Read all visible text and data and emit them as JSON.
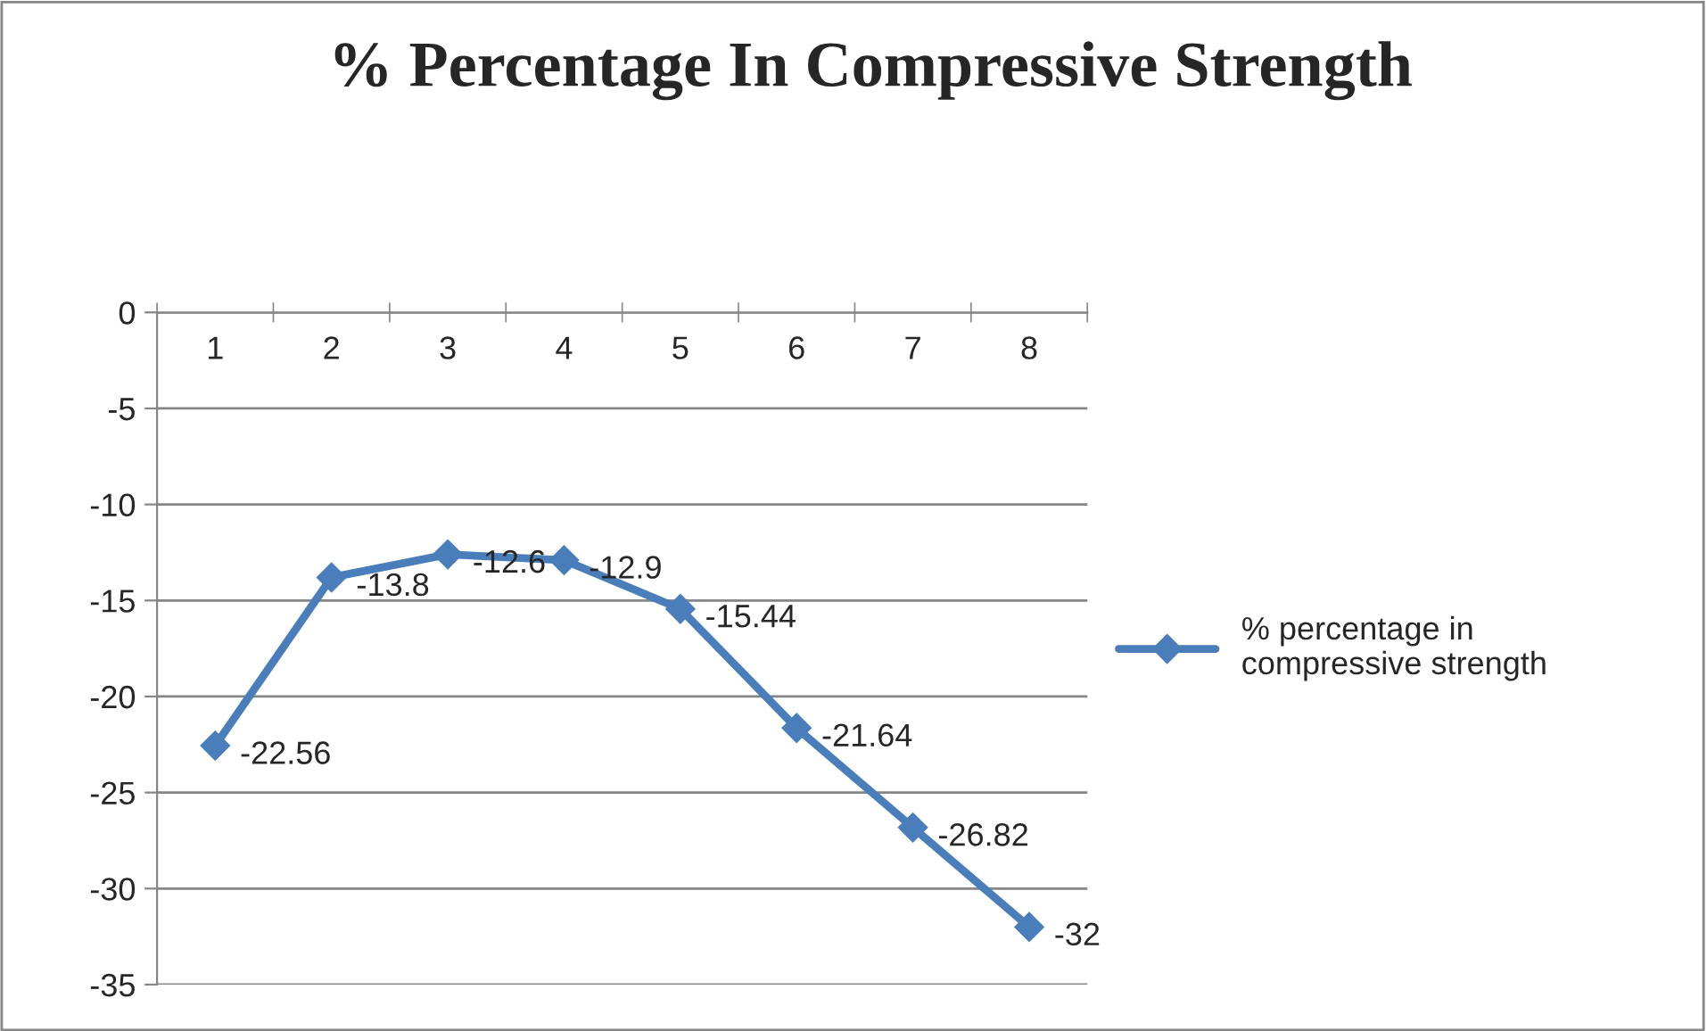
{
  "chart_data": {
    "type": "line",
    "title": "% Percentage In Compressive Strength",
    "categories": [
      "1",
      "2",
      "3",
      "4",
      "5",
      "6",
      "7",
      "8"
    ],
    "series": [
      {
        "name": "% percentage in compressive strength",
        "color": "#4a7ebb",
        "values": [
          -22.56,
          -13.8,
          -12.6,
          -12.9,
          -15.44,
          -21.64,
          -26.82,
          -32
        ]
      }
    ],
    "ylim": [
      -35,
      0
    ],
    "yticks": [
      -35,
      -30,
      -25,
      -20,
      -15,
      -10,
      -5,
      0
    ],
    "grid": "y",
    "legend": "right",
    "marker": "diamond",
    "line_style": "solid",
    "data_labels": true
  }
}
